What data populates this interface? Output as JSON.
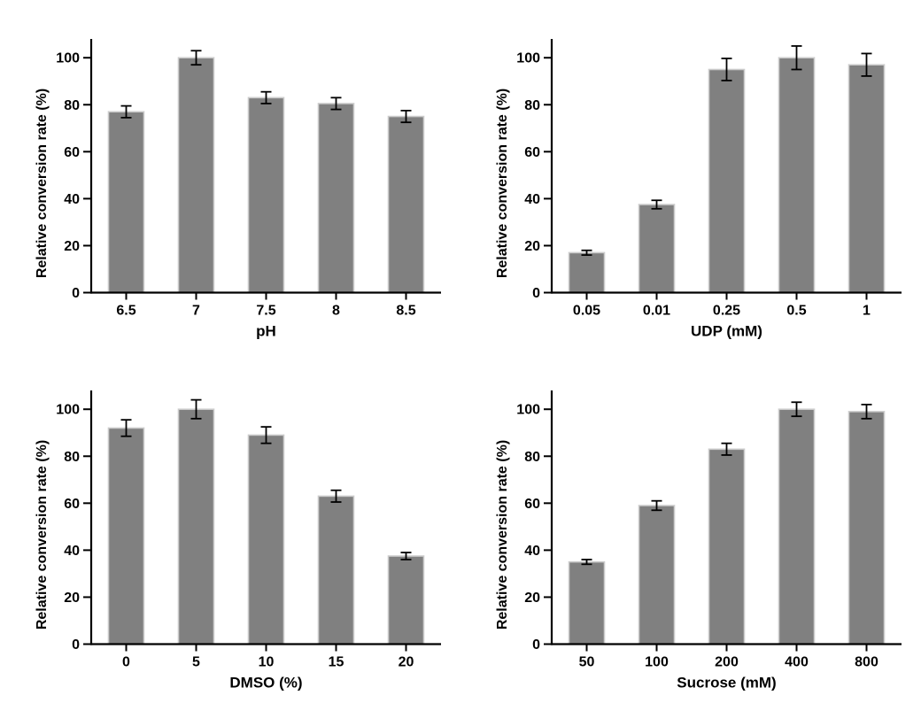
{
  "figure": {
    "background_color": "#ffffff",
    "axis_color": "#000000",
    "text_color": "#000000"
  },
  "chart_data": [
    {
      "type": "bar",
      "name": "ph-effect",
      "title": "",
      "xlabel": "pH",
      "ylabel": "Relative conversion rate (%)",
      "categories": [
        "6.5",
        "7",
        "7.5",
        "8",
        "8.5"
      ],
      "values": [
        77,
        100,
        83,
        80.5,
        75
      ],
      "errors": [
        2.5,
        3,
        2.5,
        2.5,
        2.5
      ],
      "yticks": [
        0,
        20,
        40,
        60,
        80,
        100
      ],
      "ylim": [
        0,
        108
      ],
      "grid": false,
      "legend": "none",
      "bar_color": "#808080",
      "bar_edge_color": "#cccccc",
      "error_bar_color": "#000000"
    },
    {
      "type": "bar",
      "name": "udp-effect",
      "title": "",
      "xlabel": "UDP (mM)",
      "ylabel": "Relative conversion rate (%)",
      "categories": [
        "0.05",
        "0.01",
        "0.25",
        "0.5",
        "1"
      ],
      "values": [
        17,
        37.5,
        95,
        100,
        97
      ],
      "errors": [
        1,
        1.8,
        4.7,
        5,
        4.8
      ],
      "yticks": [
        0,
        20,
        40,
        60,
        80,
        100
      ],
      "ylim": [
        0,
        108
      ],
      "grid": false,
      "legend": "none",
      "bar_color": "#808080",
      "bar_edge_color": "#cccccc",
      "error_bar_color": "#000000"
    },
    {
      "type": "bar",
      "name": "dmso-effect",
      "title": "",
      "xlabel": "DMSO (%)",
      "ylabel": "Relative conversion rate (%)",
      "categories": [
        "0",
        "5",
        "10",
        "15",
        "20"
      ],
      "values": [
        92,
        100,
        89,
        63,
        37.5
      ],
      "errors": [
        3.5,
        4,
        3.5,
        2.5,
        1.5
      ],
      "yticks": [
        0,
        20,
        40,
        60,
        80,
        100
      ],
      "ylim": [
        0,
        108
      ],
      "grid": false,
      "legend": "none",
      "bar_color": "#808080",
      "bar_edge_color": "#cccccc",
      "error_bar_color": "#000000"
    },
    {
      "type": "bar",
      "name": "sucrose-effect",
      "title": "",
      "xlabel": "Sucrose (mM)",
      "ylabel": "Relative conversion rate (%)",
      "categories": [
        "50",
        "100",
        "200",
        "400",
        "800"
      ],
      "values": [
        35,
        59,
        83,
        100,
        99
      ],
      "errors": [
        1,
        2,
        2.5,
        3,
        3
      ],
      "yticks": [
        0,
        20,
        40,
        60,
        80,
        100
      ],
      "ylim": [
        0,
        108
      ],
      "grid": false,
      "legend": "none",
      "bar_color": "#808080",
      "bar_edge_color": "#cccccc",
      "error_bar_color": "#000000"
    }
  ]
}
